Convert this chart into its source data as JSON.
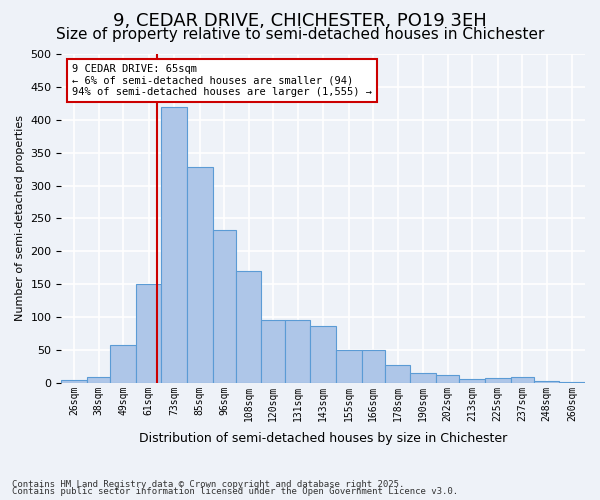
{
  "title": "9, CEDAR DRIVE, CHICHESTER, PO19 3EH",
  "subtitle": "Size of property relative to semi-detached houses in Chichester",
  "xlabel": "Distribution of semi-detached houses by size in Chichester",
  "ylabel": "Number of semi-detached properties",
  "property_label": "9 CEDAR DRIVE: 65sqm",
  "annotation_line1": "← 6% of semi-detached houses are smaller (94)",
  "annotation_line2": "94% of semi-detached houses are larger (1,555) →",
  "footnote1": "Contains HM Land Registry data © Crown copyright and database right 2025.",
  "footnote2": "Contains public sector information licensed under the Open Government Licence v3.0.",
  "categories": [
    "26sqm",
    "38sqm",
    "49sqm",
    "61sqm",
    "73sqm",
    "85sqm",
    "96sqm",
    "108sqm",
    "120sqm",
    "131sqm",
    "143sqm",
    "155sqm",
    "166sqm",
    "178sqm",
    "190sqm",
    "202sqm",
    "213sqm",
    "225sqm",
    "237sqm",
    "248sqm",
    "260sqm"
  ],
  "bar_edges": [
    20,
    32,
    43,
    55,
    67,
    79,
    91,
    102,
    114,
    125,
    137,
    149,
    161,
    172,
    184,
    196,
    207,
    219,
    231,
    242,
    254,
    266
  ],
  "values": [
    4,
    9,
    57,
    150,
    420,
    328,
    232,
    170,
    96,
    95,
    86,
    50,
    50,
    27,
    15,
    12,
    6,
    8,
    9,
    3,
    2
  ],
  "bar_color": "#aec6e8",
  "bar_edge_color": "#5b9bd5",
  "vline_color": "#cc0000",
  "vline_x": 65,
  "box_color": "#cc0000",
  "ylim": [
    0,
    500
  ],
  "yticks": [
    0,
    50,
    100,
    150,
    200,
    250,
    300,
    350,
    400,
    450,
    500
  ],
  "background_color": "#eef2f8",
  "grid_color": "#ffffff",
  "title_fontsize": 13,
  "subtitle_fontsize": 11
}
